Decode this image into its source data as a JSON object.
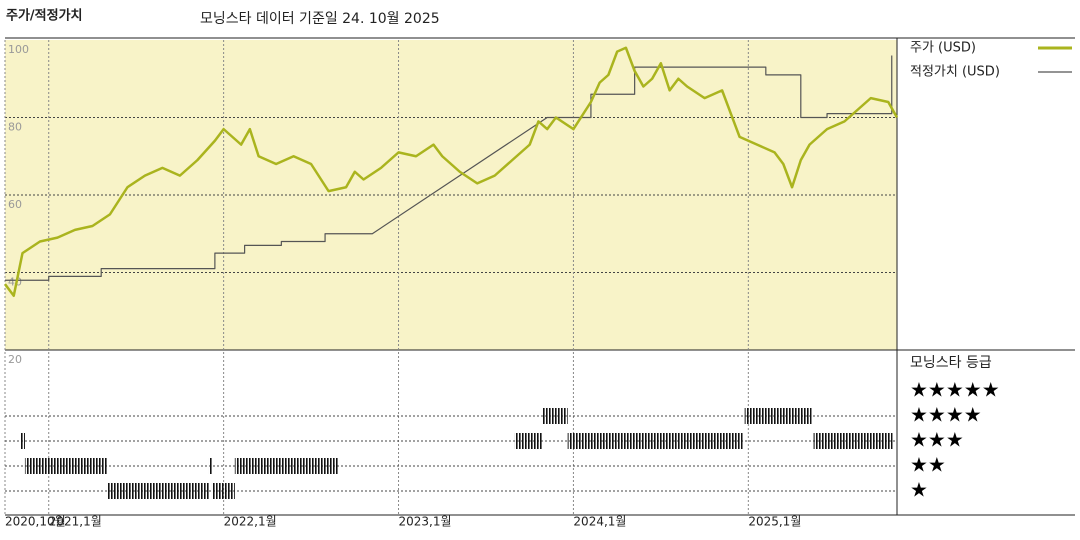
{
  "chart_data": {
    "type": "line",
    "title": "주가/적정가치",
    "subtitle": "모닝스타 데이터 기준일 24. 10월 2025",
    "xlim": [
      2020.75,
      2025.85
    ],
    "xticks": [
      {
        "value": 2020.75,
        "label": "2020,10월"
      },
      {
        "value": 2021,
        "label": "2021,1월"
      },
      {
        "value": 2022,
        "label": "2022,1월"
      },
      {
        "value": 2023,
        "label": "2023,1월"
      },
      {
        "value": 2024,
        "label": "2024,1월"
      },
      {
        "value": 2025,
        "label": "2025,1월"
      }
    ],
    "ylim": [
      20,
      100
    ],
    "yticks": [
      20,
      40,
      60,
      80,
      100
    ],
    "grid": true,
    "series": [
      {
        "name": "주가 (USD)",
        "color": "#aab41e",
        "x": [
          2020.75,
          2020.8,
          2020.85,
          2020.95,
          2021.05,
          2021.15,
          2021.25,
          2021.35,
          2021.45,
          2021.55,
          2021.65,
          2021.75,
          2021.85,
          2021.95,
          2022.0,
          2022.05,
          2022.1,
          2022.15,
          2022.2,
          2022.3,
          2022.4,
          2022.5,
          2022.6,
          2022.7,
          2022.75,
          2022.8,
          2022.9,
          2023.0,
          2023.1,
          2023.2,
          2023.25,
          2023.35,
          2023.45,
          2023.55,
          2023.65,
          2023.75,
          2023.8,
          2023.85,
          2023.9,
          2024.0,
          2024.1,
          2024.15,
          2024.2,
          2024.25,
          2024.3,
          2024.35,
          2024.4,
          2024.45,
          2024.5,
          2024.55,
          2024.6,
          2024.65,
          2024.75,
          2024.85,
          2024.95,
          2025.05,
          2025.15,
          2025.2,
          2025.25,
          2025.3,
          2025.35,
          2025.45,
          2025.55,
          2025.65,
          2025.7,
          2025.8,
          2025.85
        ],
        "values": [
          37,
          34,
          45,
          48,
          49,
          51,
          52,
          55,
          62,
          65,
          67,
          65,
          69,
          74,
          77,
          75,
          73,
          77,
          70,
          68,
          70,
          68,
          61,
          62,
          66,
          64,
          67,
          71,
          70,
          73,
          70,
          66,
          63,
          65,
          69,
          73,
          79,
          77,
          80,
          77,
          84,
          89,
          91,
          97,
          98,
          92,
          88,
          90,
          94,
          87,
          90,
          88,
          85,
          87,
          75,
          73,
          71,
          68,
          62,
          69,
          73,
          77,
          79,
          83,
          85,
          84,
          80
        ]
      },
      {
        "name": "적정가치 (USD)",
        "color": "#555555",
        "x": [
          2020.75,
          2021.0,
          2021.0,
          2021.3,
          2021.3,
          2021.95,
          2021.95,
          2022.12,
          2022.12,
          2022.33,
          2022.33,
          2022.58,
          2022.58,
          2022.85,
          2023.85,
          2024.1,
          2024.1,
          2024.35,
          2024.35,
          2025.1,
          2025.1,
          2025.3,
          2025.3,
          2025.45,
          2025.45,
          2025.82,
          2025.82
        ],
        "values": [
          38,
          38,
          39,
          39,
          41,
          41,
          45,
          45,
          47,
          47,
          48,
          48,
          50,
          50,
          80,
          80,
          86,
          86,
          93,
          93,
          91,
          91,
          80,
          80,
          81,
          81,
          96
        ]
      }
    ],
    "ratings": {
      "title": "모닝스타 등급",
      "labels": [
        "★★★★★",
        "★★★★",
        "★★★",
        "★★",
        "★"
      ],
      "segments": [
        {
          "start": 2020.836,
          "end": 2020.864,
          "stars": 3
        },
        {
          "start": 2020.864,
          "end": 2021.333,
          "stars": 2
        },
        {
          "start": 2021.333,
          "end": 2021.916,
          "stars": 1
        },
        {
          "start": 2021.916,
          "end": 2021.933,
          "stars": 2
        },
        {
          "start": 2021.933,
          "end": 2022.064,
          "stars": 1
        },
        {
          "start": 2022.064,
          "end": 2022.653,
          "stars": 2
        },
        {
          "start": 2023.664,
          "end": 2023.824,
          "stars": 3
        },
        {
          "start": 2023.824,
          "end": 2023.967,
          "stars": 4
        },
        {
          "start": 2023.967,
          "end": 2024.967,
          "stars": 3
        },
        {
          "start": 2024.979,
          "end": 2025.361,
          "stars": 4
        },
        {
          "start": 2025.373,
          "end": 2025.824,
          "stars": 3
        }
      ]
    }
  }
}
